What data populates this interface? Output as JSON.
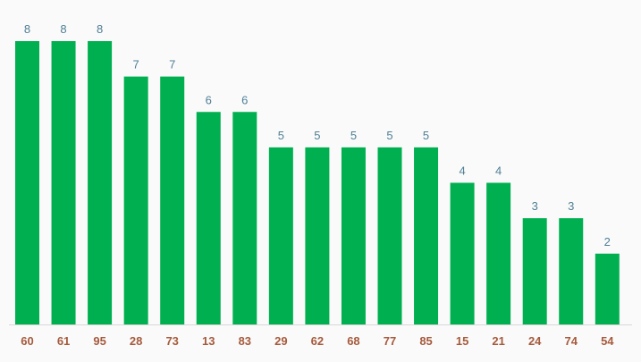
{
  "chart_data": {
    "type": "bar",
    "categories": [
      "60",
      "61",
      "95",
      "28",
      "73",
      "13",
      "83",
      "29",
      "62",
      "68",
      "77",
      "85",
      "15",
      "21",
      "24",
      "74",
      "54"
    ],
    "values": [
      8,
      8,
      8,
      7,
      7,
      6,
      6,
      5,
      5,
      5,
      5,
      5,
      4,
      4,
      3,
      3,
      2
    ],
    "color": "#00b050",
    "ylim": [
      0,
      8
    ]
  }
}
